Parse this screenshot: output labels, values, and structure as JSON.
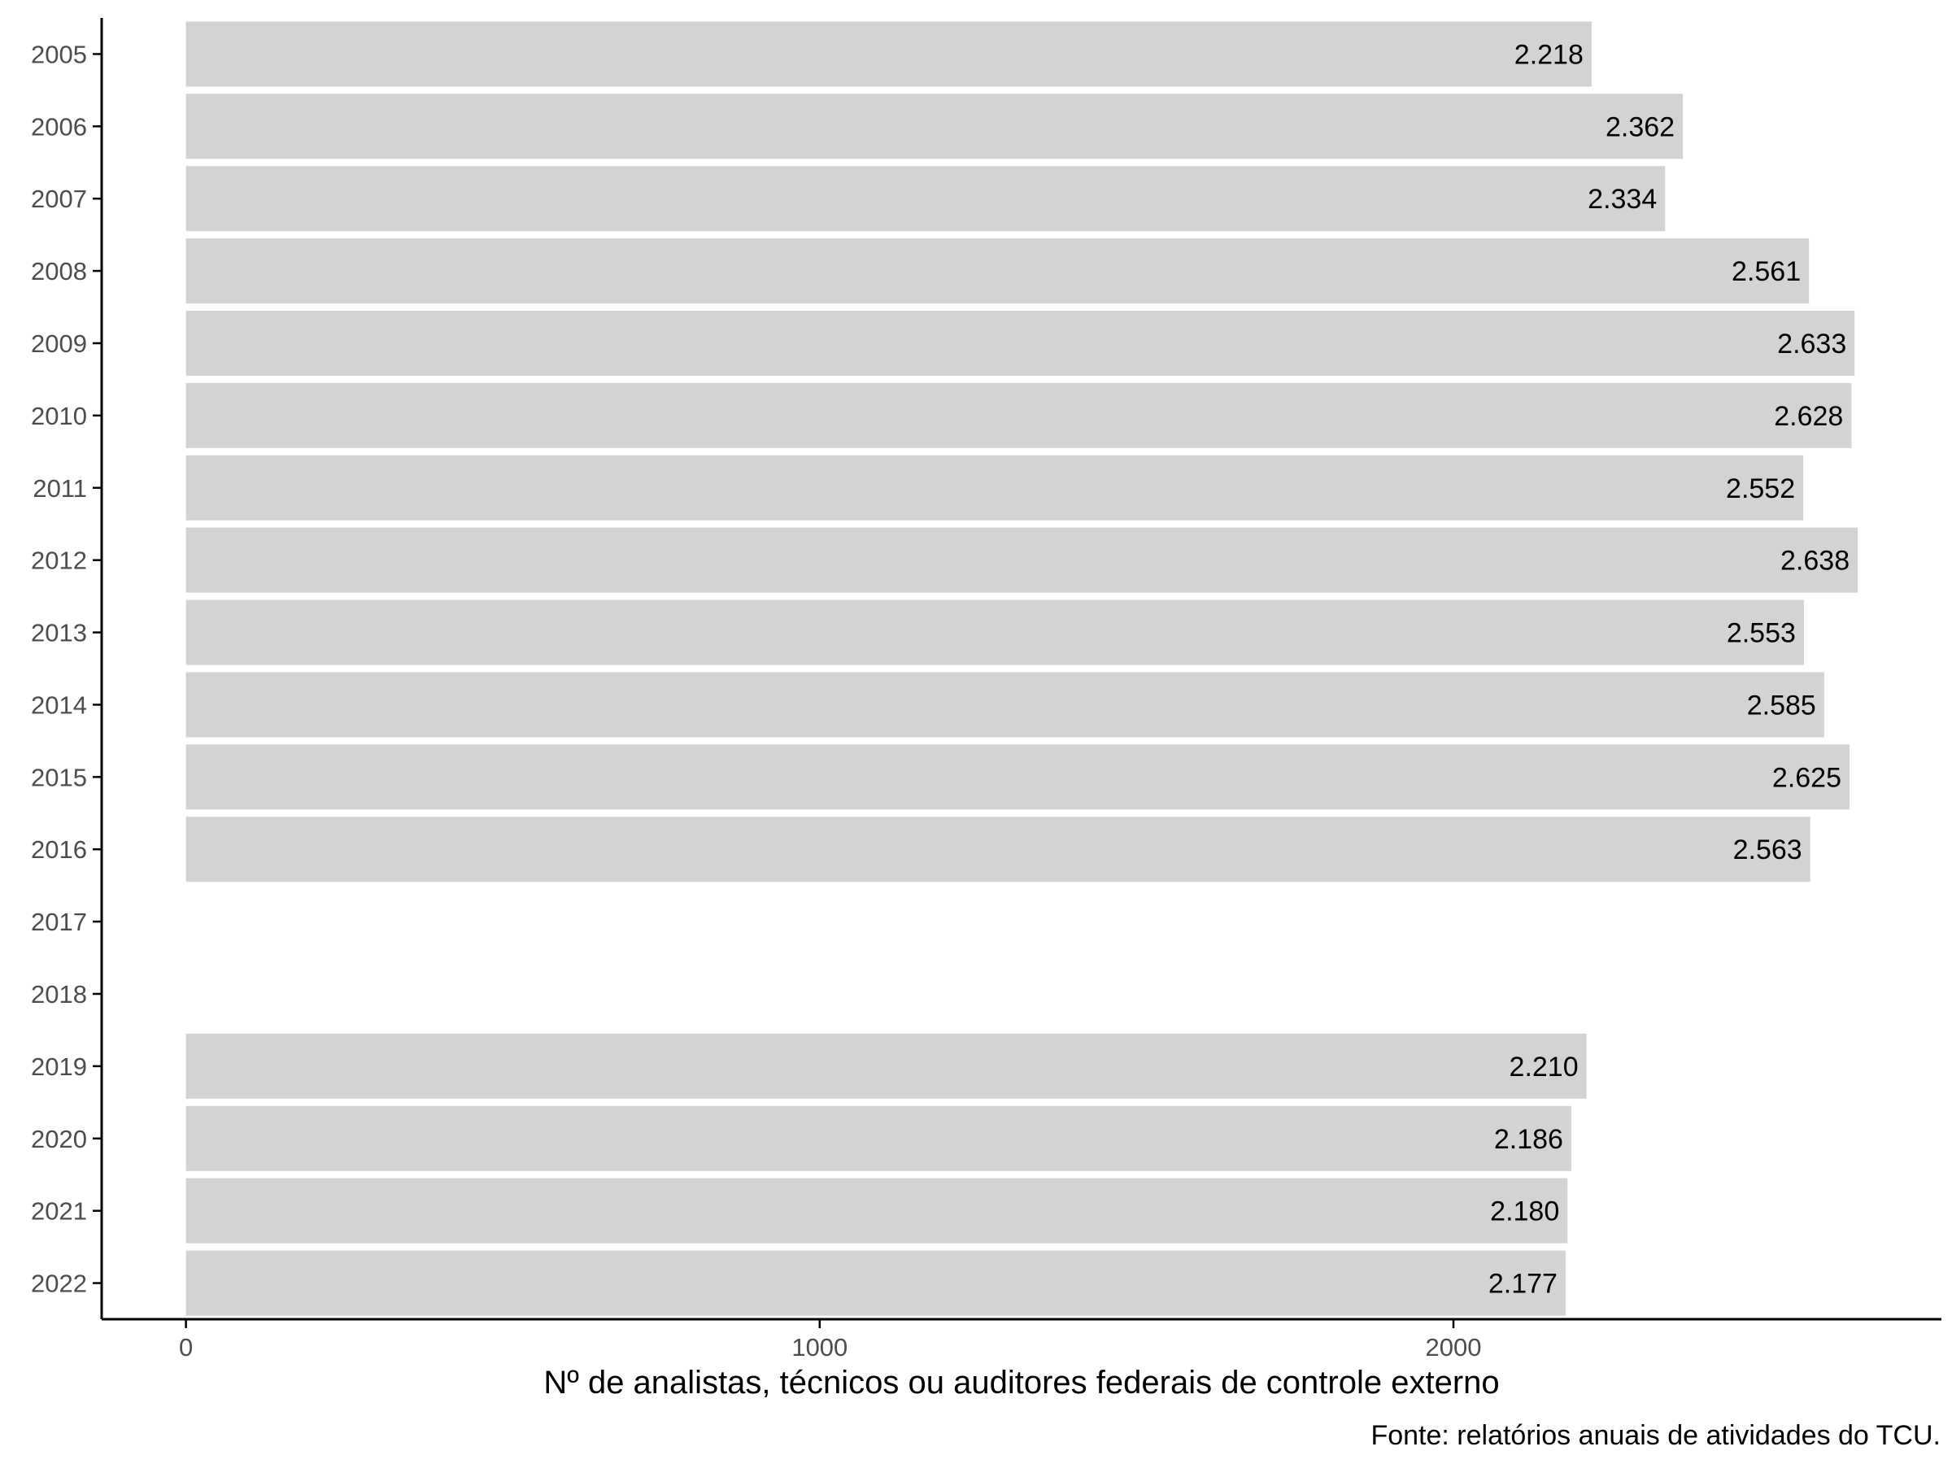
{
  "chart_data": {
    "type": "bar",
    "orientation": "horizontal",
    "categories": [
      "2005",
      "2006",
      "2007",
      "2008",
      "2009",
      "2010",
      "2011",
      "2012",
      "2013",
      "2014",
      "2015",
      "2016",
      "2017",
      "2018",
      "2019",
      "2020",
      "2021",
      "2022"
    ],
    "values": [
      2218,
      2362,
      2334,
      2561,
      2633,
      2628,
      2552,
      2638,
      2553,
      2585,
      2625,
      2563,
      null,
      null,
      2210,
      2186,
      2180,
      2177
    ],
    "data_labels": [
      "2.218",
      "2.362",
      "2.334",
      "2.561",
      "2.633",
      "2.628",
      "2.552",
      "2.638",
      "2.553",
      "2.585",
      "2.625",
      "2.563",
      "",
      "",
      "2.210",
      "2.186",
      "2.180",
      "2.177"
    ],
    "x_ticks": [
      0,
      1000,
      2000
    ],
    "x_tick_labels": [
      "0",
      "1000",
      "2000"
    ],
    "xlim": [
      -133,
      2770
    ],
    "xlabel": "Nº de analistas, técnicos ou auditores federais de controle externo",
    "ylabel": "",
    "caption": "Fonte: relatórios anuais de atividades do TCU.",
    "bar_color": "#d3d3d3",
    "grid": false
  }
}
